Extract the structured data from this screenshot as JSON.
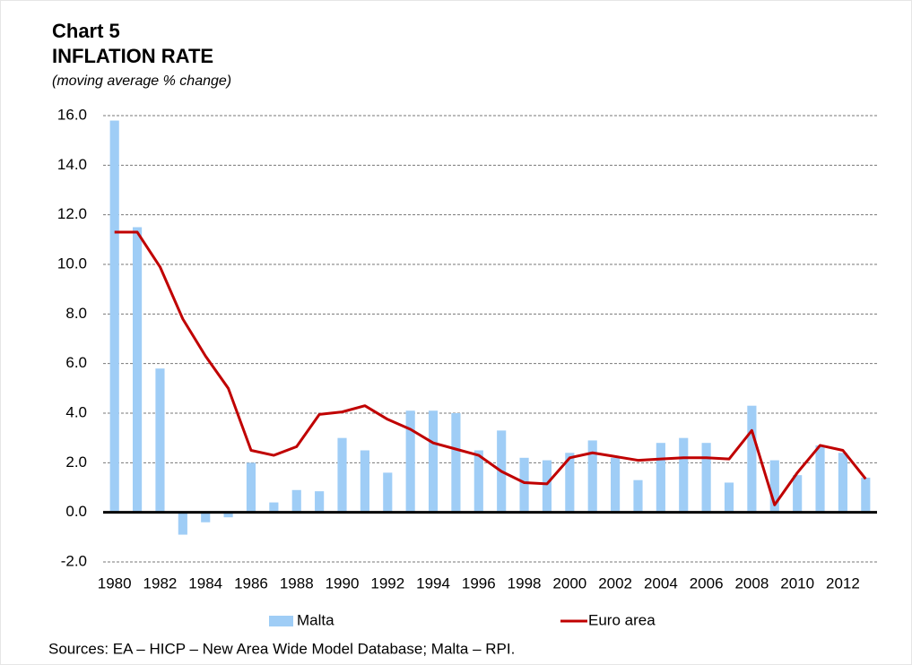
{
  "chart_data": {
    "type": "bar_line",
    "title": "Chart 5",
    "subtitle": "INFLATION RATE",
    "unit_note": "(moving average % change)",
    "categories": [
      "1980",
      null,
      "1982",
      null,
      "1984",
      null,
      "1986",
      null,
      "1988",
      null,
      "1990",
      null,
      "1992",
      null,
      "1994",
      null,
      "1996",
      null,
      "1998",
      null,
      "2000",
      null,
      "2002",
      null,
      "2004",
      null,
      "2006",
      null,
      "2008",
      null,
      "2010",
      null,
      "2012",
      null
    ],
    "series": [
      {
        "name": "Malta",
        "type": "bar",
        "color": "#9fcdf6",
        "values": [
          15.8,
          11.5,
          5.8,
          -0.9,
          -0.4,
          -0.2,
          2.0,
          0.4,
          0.9,
          0.85,
          3.0,
          2.5,
          1.6,
          4.1,
          4.1,
          4.0,
          2.5,
          3.3,
          2.2,
          2.1,
          2.4,
          2.9,
          2.2,
          1.3,
          2.8,
          3.0,
          2.8,
          1.2,
          4.3,
          2.1,
          1.5,
          2.7,
          2.4,
          1.4
        ]
      },
      {
        "name": "Euro area",
        "type": "line",
        "color": "#c00000",
        "values": [
          11.3,
          11.3,
          9.9,
          7.8,
          6.3,
          5.0,
          2.5,
          2.3,
          2.65,
          3.95,
          4.05,
          4.3,
          3.75,
          3.35,
          2.8,
          2.55,
          2.3,
          1.65,
          1.2,
          1.15,
          2.2,
          2.4,
          2.25,
          2.1,
          2.15,
          2.2,
          2.2,
          2.15,
          3.3,
          0.3,
          1.6,
          2.7,
          2.5,
          1.35
        ]
      }
    ],
    "ylim": [
      -2,
      16
    ],
    "yticks": [
      {
        "value": -2,
        "label": "-2.0"
      },
      {
        "value": 0,
        "label": "0.0"
      },
      {
        "value": 2,
        "label": "2.0"
      },
      {
        "value": 4,
        "label": "4.0"
      },
      {
        "value": 6,
        "label": "6.0"
      },
      {
        "value": 8,
        "label": "8.0"
      },
      {
        "value": 10,
        "label": "10.0"
      },
      {
        "value": 12,
        "label": "12.0"
      },
      {
        "value": 14,
        "label": "14.0"
      },
      {
        "value": 16,
        "label": "16.0"
      }
    ],
    "grid": true,
    "legend": "bottom",
    "note": "Sources: EA – HICP – New Area Wide Model Database; Malta – RPI."
  }
}
